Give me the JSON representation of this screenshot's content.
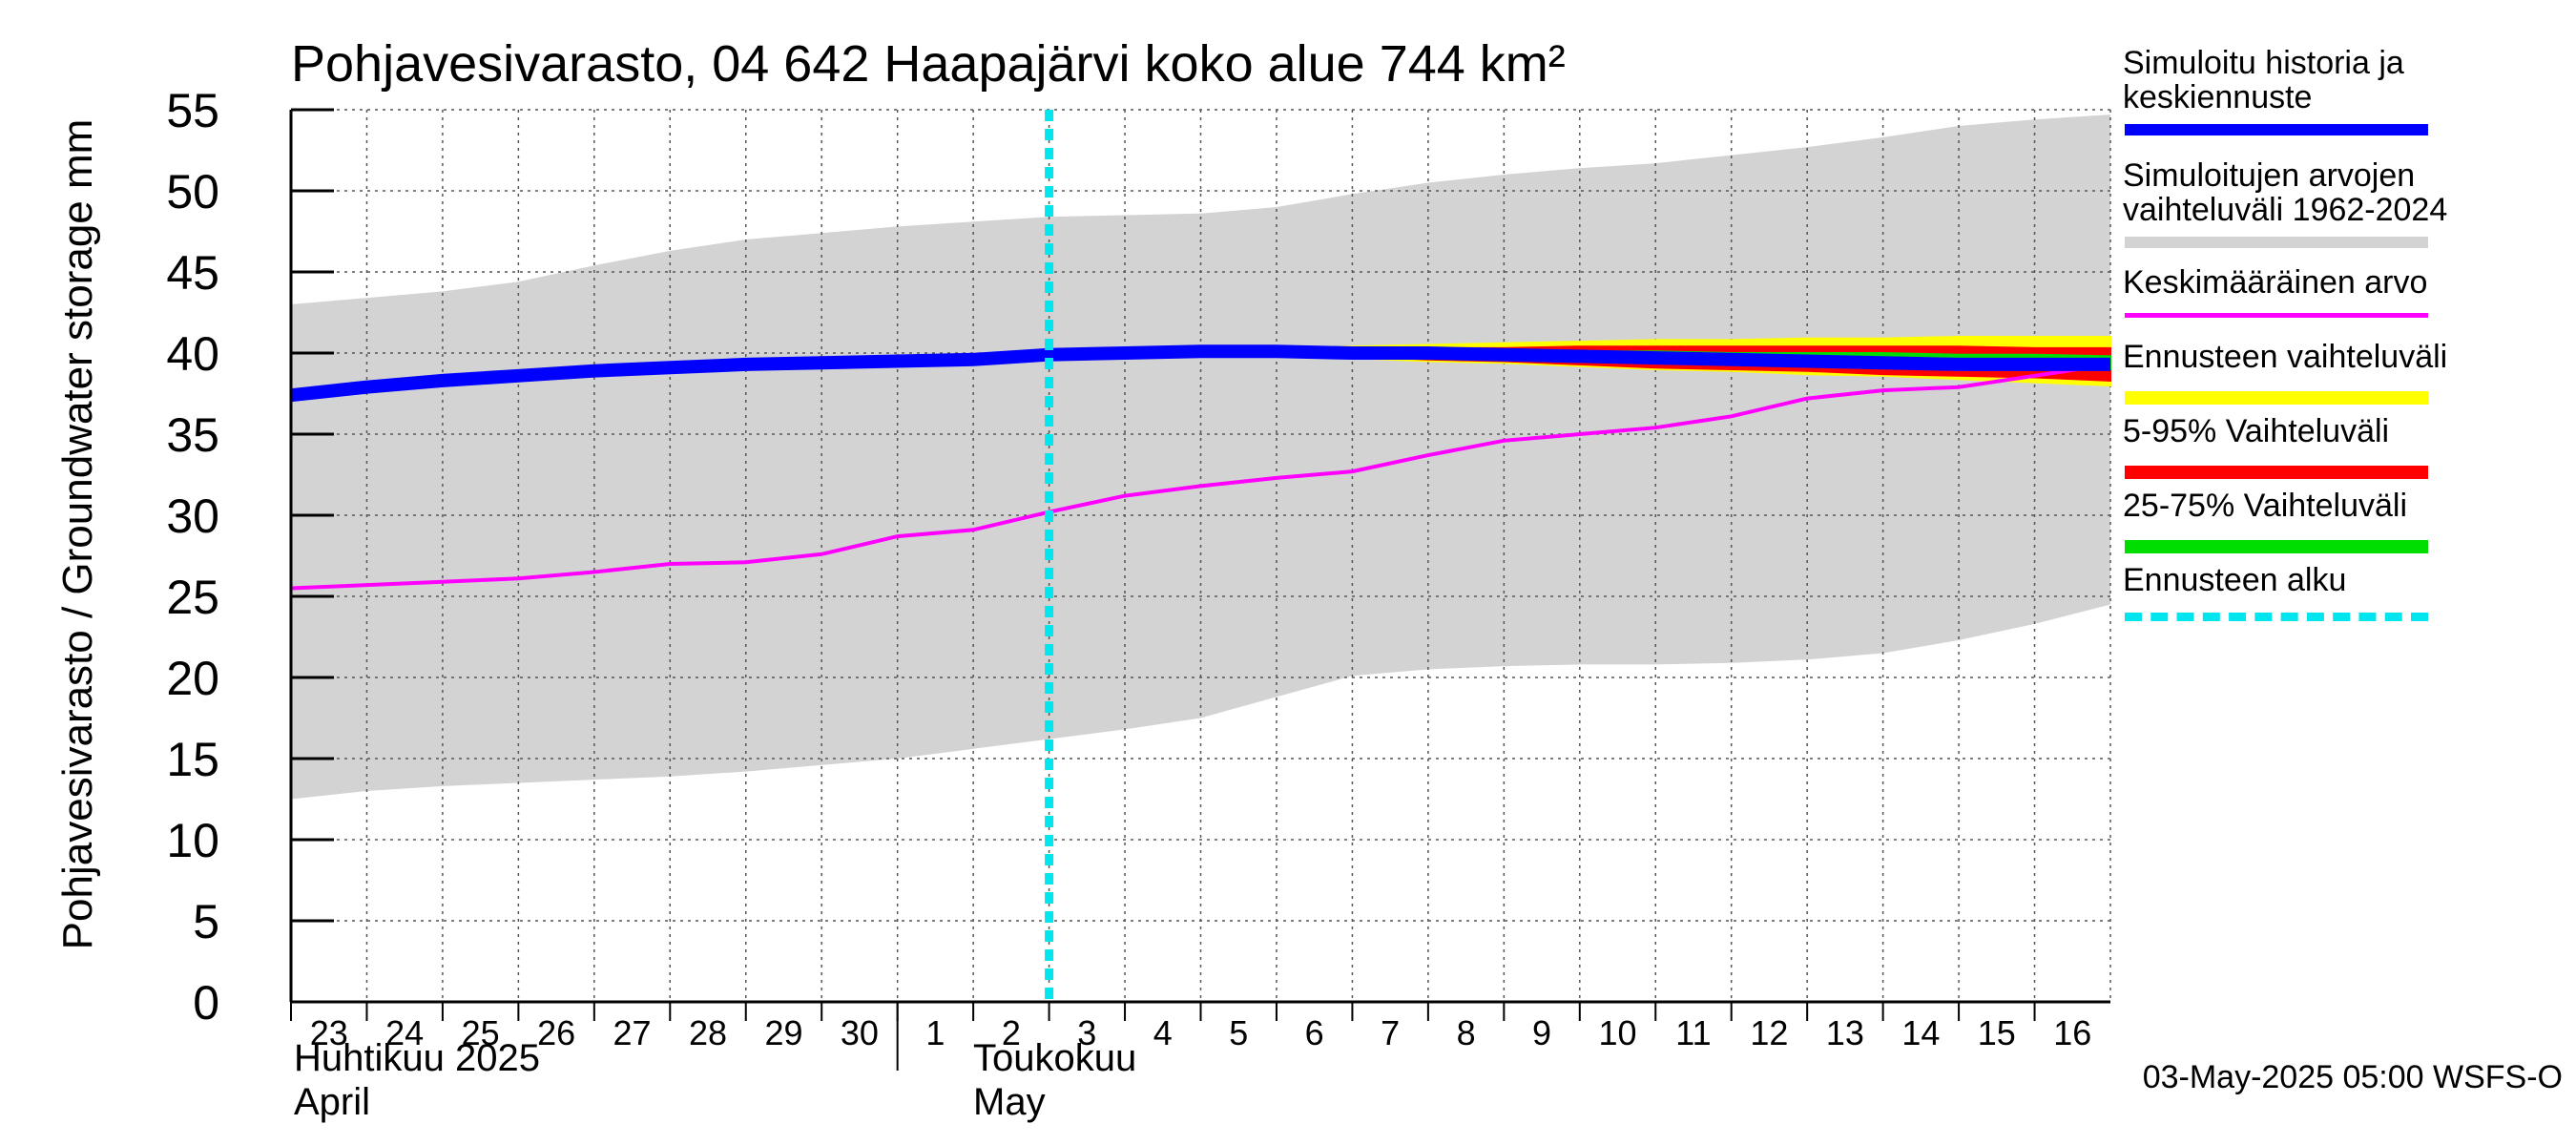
{
  "chart_data": {
    "type": "area",
    "title": "Pohjavesivarasto, 04 642 Haapajärvi koko alue 744 km²",
    "ylabel": "Pohjavesivarasto / Groundwater storage   mm",
    "ylim": [
      0,
      55
    ],
    "yticks": [
      "0",
      "5",
      "10",
      "15",
      "20",
      "25",
      "30",
      "35",
      "40",
      "45",
      "50",
      "55"
    ],
    "xticks": [
      "23",
      "24",
      "25",
      "26",
      "27",
      "28",
      "29",
      "30",
      "1",
      "2",
      "3",
      "4",
      "5",
      "6",
      "7",
      "8",
      "9",
      "10",
      "11",
      "12",
      "13",
      "14",
      "15",
      "16"
    ],
    "month_labels": [
      {
        "fi": "Huhtikuu  2025",
        "en": "April"
      },
      {
        "fi": "Toukokuu",
        "en": "May"
      }
    ],
    "grid": true,
    "legend_placement": "right",
    "forecast_start_index": 10,
    "range_1962_2024": {
      "lower": [
        12.5,
        13.0,
        13.3,
        13.5,
        13.7,
        13.9,
        14.2,
        14.6,
        15.0,
        15.6,
        16.2,
        16.8,
        17.5,
        18.8,
        20.1,
        20.5,
        20.7,
        20.8,
        20.8,
        20.9,
        21.1,
        21.5,
        22.3,
        23.3,
        24.5
      ],
      "upper": [
        43.0,
        43.4,
        43.8,
        44.4,
        45.4,
        46.3,
        47.0,
        47.4,
        47.8,
        48.1,
        48.4,
        48.5,
        48.6,
        49.0,
        49.8,
        50.5,
        51.0,
        51.4,
        51.7,
        52.2,
        52.7,
        53.3,
        54.0,
        54.4,
        54.7
      ]
    },
    "mean": [
      25.5,
      25.7,
      25.9,
      26.1,
      26.5,
      27.0,
      27.1,
      27.6,
      28.7,
      29.1,
      30.2,
      31.2,
      31.8,
      32.3,
      32.7,
      33.7,
      34.6,
      35.0,
      35.4,
      36.1,
      37.2,
      37.7,
      37.9,
      38.6,
      39.3
    ],
    "history_median": [
      37.4,
      37.9,
      38.3,
      38.6,
      38.9,
      39.1,
      39.3,
      39.4,
      39.5,
      39.6,
      39.9,
      40.0,
      40.1,
      40.1,
      40.0,
      40.0,
      39.9,
      39.8,
      39.7,
      39.6,
      39.5,
      39.4,
      39.3,
      39.3,
      39.3
    ],
    "forecast_range": {
      "lower": [
        39.9,
        39.9,
        39.9,
        39.8,
        39.7,
        39.5,
        39.4,
        39.2,
        39.0,
        38.9,
        38.7,
        38.6,
        38.4,
        38.2,
        38.0
      ],
      "upper": [
        39.9,
        40.1,
        40.2,
        40.3,
        40.4,
        40.5,
        40.6,
        40.7,
        40.8,
        40.8,
        40.9,
        40.9,
        41.0,
        41.0,
        41.0
      ]
    },
    "range_5_95": {
      "lower": [
        39.9,
        39.9,
        40.0,
        39.9,
        39.8,
        39.6,
        39.5,
        39.3,
        39.1,
        39.0,
        38.9,
        38.7,
        38.6,
        38.5,
        38.3
      ],
      "upper": [
        39.9,
        40.1,
        40.1,
        40.2,
        40.3,
        40.3,
        40.3,
        40.4,
        40.4,
        40.4,
        40.4,
        40.4,
        40.4,
        40.3,
        40.3
      ]
    },
    "range_25_75": {
      "lower": [
        39.9,
        40.0,
        40.0,
        40.0,
        40.0,
        39.9,
        39.8,
        39.7,
        39.6,
        39.5,
        39.4,
        39.3,
        39.2,
        39.1,
        39.0
      ],
      "upper": [
        39.9,
        40.0,
        40.1,
        40.1,
        40.1,
        40.1,
        40.1,
        40.1,
        40.1,
        40.0,
        40.0,
        40.0,
        39.9,
        39.9,
        39.8
      ]
    },
    "legend": [
      {
        "label": "Simuloitu historia ja\nkeskiennuste",
        "color": "#0000ff"
      },
      {
        "label": "Simuloitujen arvojen\nvaihteluväli 1962-2024",
        "color": "#d3d3d3"
      },
      {
        "label": "Keskimääräinen arvo",
        "color": "#ff00ff"
      },
      {
        "label": "Ennusteen vaihteluväli",
        "color": "#ffff00"
      },
      {
        "label": "5-95% Vaihteluväli",
        "color": "#ff0000"
      },
      {
        "label": "25-75% Vaihteluväli",
        "color": "#00dd00"
      },
      {
        "label": "Ennusteen alku",
        "color": "#00e5ee"
      }
    ],
    "timestamp": "03-May-2025 05:00 WSFS-O"
  }
}
